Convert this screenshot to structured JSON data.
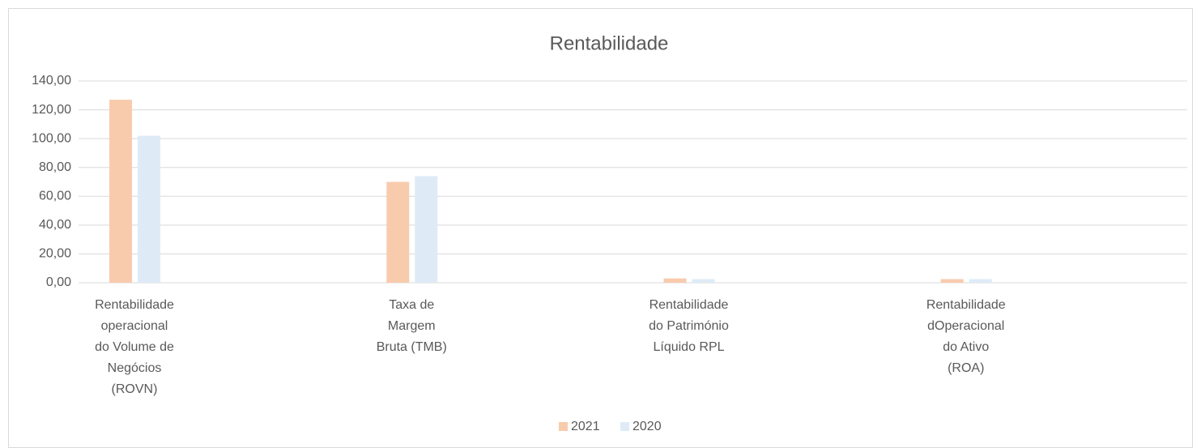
{
  "chart_data": {
    "type": "bar",
    "title": "Rentabilidade",
    "categories": [
      "Rentabilidade\noperacional\ndo Volume de\nNegócios\n(ROVN)",
      "Taxa de\nMargem\nBruta (TMB)",
      "Rentabilidade\ndo Património\nLíquido RPL",
      "Rentabilidade\ndOperacional\ndo Ativo\n(ROA)"
    ],
    "series": [
      {
        "name": "2021",
        "color": "#f8cbad",
        "values": [
          127,
          70,
          3,
          2.5
        ]
      },
      {
        "name": "2020",
        "color": "#deebf7",
        "values": [
          102,
          74,
          2.5,
          2.5
        ]
      }
    ],
    "ylim": [
      0,
      140
    ],
    "yticks": [
      {
        "value": 0,
        "label": "0,00"
      },
      {
        "value": 20,
        "label": "20,00"
      },
      {
        "value": 40,
        "label": "40,00"
      },
      {
        "value": 60,
        "label": "60,00"
      },
      {
        "value": 80,
        "label": "80,00"
      },
      {
        "value": 100,
        "label": "100,00"
      },
      {
        "value": 120,
        "label": "120,00"
      },
      {
        "value": 140,
        "label": "140,00"
      }
    ],
    "grid": true,
    "legend": "bottom"
  }
}
